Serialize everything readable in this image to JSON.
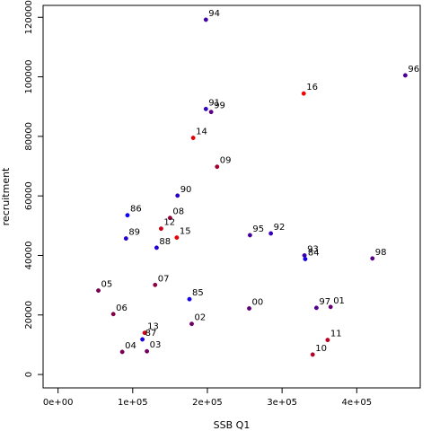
{
  "chart_data": {
    "type": "scatter",
    "title": "",
    "xlabel": "SSB Q1",
    "ylabel": "recruitment",
    "xlim": [
      -20000,
      485000
    ],
    "ylim": [
      -4500,
      124000
    ],
    "x_ticks": [
      0,
      100000,
      200000,
      300000,
      400000
    ],
    "x_tick_labels": [
      "0e+00",
      "1e+05",
      "2e+05",
      "3e+05",
      "4e+05"
    ],
    "y_ticks": [
      0,
      20000,
      40000,
      60000,
      80000,
      100000,
      120000
    ],
    "y_tick_labels": [
      "0",
      "20000",
      "40000",
      "60000",
      "80000",
      "100000",
      "120000"
    ],
    "grid": false,
    "legend": "none",
    "colors": {
      "early": "#0000ff",
      "mid": "#880088",
      "late": "#ee0000"
    },
    "points": [
      {
        "label": "84",
        "x": 331000,
        "y": 38800,
        "color": "#1a00e0"
      },
      {
        "label": "85",
        "x": 176000,
        "y": 25300,
        "color": "#1500e8"
      },
      {
        "label": "86",
        "x": 93000,
        "y": 53500,
        "color": "#1000f0"
      },
      {
        "label": "87",
        "x": 113000,
        "y": 11800,
        "color": "#1a00e0"
      },
      {
        "label": "88",
        "x": 132000,
        "y": 42600,
        "color": "#2000d8"
      },
      {
        "label": "89",
        "x": 91000,
        "y": 45700,
        "color": "#2500d0"
      },
      {
        "label": "90",
        "x": 160000,
        "y": 60100,
        "color": "#2a00c8"
      },
      {
        "label": "91",
        "x": 198000,
        "y": 89200,
        "color": "#3000c0"
      },
      {
        "label": "92",
        "x": 285000,
        "y": 47400,
        "color": "#3500b8"
      },
      {
        "label": "93",
        "x": 330000,
        "y": 40000,
        "color": "#3a00b0"
      },
      {
        "label": "94",
        "x": 198000,
        "y": 119200,
        "color": "#4000a8"
      },
      {
        "label": "95",
        "x": 257000,
        "y": 46800,
        "color": "#4500a0"
      },
      {
        "label": "96",
        "x": 465000,
        "y": 100500,
        "color": "#4a0098"
      },
      {
        "label": "97",
        "x": 346000,
        "y": 22400,
        "color": "#500090"
      },
      {
        "label": "98",
        "x": 421000,
        "y": 39000,
        "color": "#550088"
      },
      {
        "label": "99",
        "x": 205000,
        "y": 88200,
        "color": "#5a0080"
      },
      {
        "label": "00",
        "x": 256000,
        "y": 22200,
        "color": "#600078"
      },
      {
        "label": "01",
        "x": 365000,
        "y": 22700,
        "color": "#650070"
      },
      {
        "label": "02",
        "x": 179000,
        "y": 17000,
        "color": "#6a0068"
      },
      {
        "label": "03",
        "x": 119000,
        "y": 7800,
        "color": "#700060"
      },
      {
        "label": "04",
        "x": 86000,
        "y": 7600,
        "color": "#750058"
      },
      {
        "label": "05",
        "x": 54000,
        "y": 28200,
        "color": "#7a0050"
      },
      {
        "label": "06",
        "x": 74000,
        "y": 20300,
        "color": "#800048"
      },
      {
        "label": "07",
        "x": 130000,
        "y": 30100,
        "color": "#8a0040"
      },
      {
        "label": "08",
        "x": 150000,
        "y": 52600,
        "color": "#950038"
      },
      {
        "label": "09",
        "x": 213000,
        "y": 69800,
        "color": "#a00030"
      },
      {
        "label": "10",
        "x": 341000,
        "y": 6700,
        "color": "#b00028"
      },
      {
        "label": "11",
        "x": 361000,
        "y": 11600,
        "color": "#c00020"
      },
      {
        "label": "12",
        "x": 138000,
        "y": 49000,
        "color": "#cc0018"
      },
      {
        "label": "13",
        "x": 116000,
        "y": 14000,
        "color": "#d80010"
      },
      {
        "label": "14",
        "x": 181000,
        "y": 79500,
        "color": "#e20008"
      },
      {
        "label": "15",
        "x": 159000,
        "y": 46000,
        "color": "#ea0004"
      },
      {
        "label": "16",
        "x": 329000,
        "y": 94400,
        "color": "#f00000"
      }
    ]
  }
}
